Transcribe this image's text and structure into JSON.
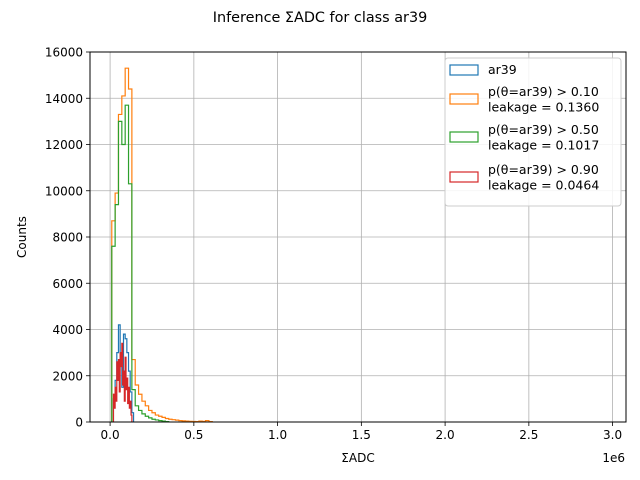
{
  "chart_data": {
    "type": "histogram",
    "title": "Inference ΣADC for class ar39",
    "xlabel": "ΣADC",
    "ylabel": "Counts",
    "x_offset_label": "1e6",
    "xlim": [
      -120000,
      3080000
    ],
    "ylim": [
      0,
      16000
    ],
    "x_ticks": [
      0,
      500000,
      1000000,
      1500000,
      2000000,
      2500000,
      3000000
    ],
    "x_tick_labels": [
      "0.0",
      "0.5",
      "1.0",
      "1.5",
      "2.0",
      "2.5",
      "3.0"
    ],
    "y_ticks": [
      0,
      2000,
      4000,
      6000,
      8000,
      10000,
      12000,
      14000,
      16000
    ],
    "y_tick_labels": [
      "0",
      "2000",
      "4000",
      "6000",
      "8000",
      "10000",
      "12000",
      "14000",
      "16000"
    ],
    "grid": true,
    "legend_position": "upper right",
    "series": [
      {
        "name": "ar39",
        "color": "#1f77b4",
        "bin_edges": [
          20000,
          30000,
          40000,
          50000,
          60000,
          70000,
          80000,
          90000,
          100000,
          110000,
          120000,
          130000,
          140000
        ],
        "counts": [
          1000,
          1800,
          3000,
          4200,
          2600,
          1500,
          3800,
          3600,
          3000,
          2200,
          1300,
          400
        ]
      },
      {
        "name": "p(θ=ar39) > 0.10\nleakage = 0.1360",
        "color": "#ff7f0e",
        "bin_edges": [
          10000,
          30000,
          50000,
          70000,
          90000,
          110000,
          130000,
          150000,
          170000,
          190000,
          210000,
          230000,
          250000,
          270000,
          290000,
          310000,
          330000,
          350000,
          370000,
          390000,
          410000,
          430000,
          450000,
          470000,
          490000,
          510000,
          530000,
          550000,
          570000,
          590000,
          610000
        ],
        "counts": [
          8700,
          9900,
          13300,
          14100,
          15300,
          14400,
          2700,
          1600,
          1200,
          900,
          700,
          500,
          400,
          300,
          250,
          200,
          150,
          120,
          100,
          80,
          60,
          50,
          40,
          30,
          25,
          20,
          40,
          30,
          60,
          20
        ]
      },
      {
        "name": "p(θ=ar39) > 0.50\nleakage = 0.1017",
        "color": "#2ca02c",
        "bin_edges": [
          10000,
          30000,
          50000,
          70000,
          90000,
          110000,
          130000,
          150000,
          170000,
          190000,
          210000,
          230000,
          250000,
          270000,
          290000,
          310000,
          330000,
          350000
        ],
        "counts": [
          7600,
          9400,
          13000,
          12000,
          13700,
          10300,
          1400,
          700,
          500,
          350,
          250,
          180,
          120,
          90,
          60,
          40,
          20
        ]
      },
      {
        "name": "p(θ=ar39) > 0.90\nleakage = 0.0464",
        "color": "#d62728",
        "bin_edges": [
          20000,
          25000,
          30000,
          35000,
          40000,
          45000,
          50000,
          55000,
          60000,
          65000,
          70000,
          75000,
          80000,
          85000,
          90000,
          95000,
          100000,
          105000,
          110000,
          115000,
          120000,
          125000,
          130000
        ],
        "counts": [
          1200,
          600,
          1500,
          900,
          2600,
          1800,
          2700,
          1300,
          3000,
          2400,
          3400,
          1600,
          2200,
          900,
          2800,
          1400,
          1900,
          800,
          1500,
          600,
          900,
          300
        ]
      }
    ]
  }
}
